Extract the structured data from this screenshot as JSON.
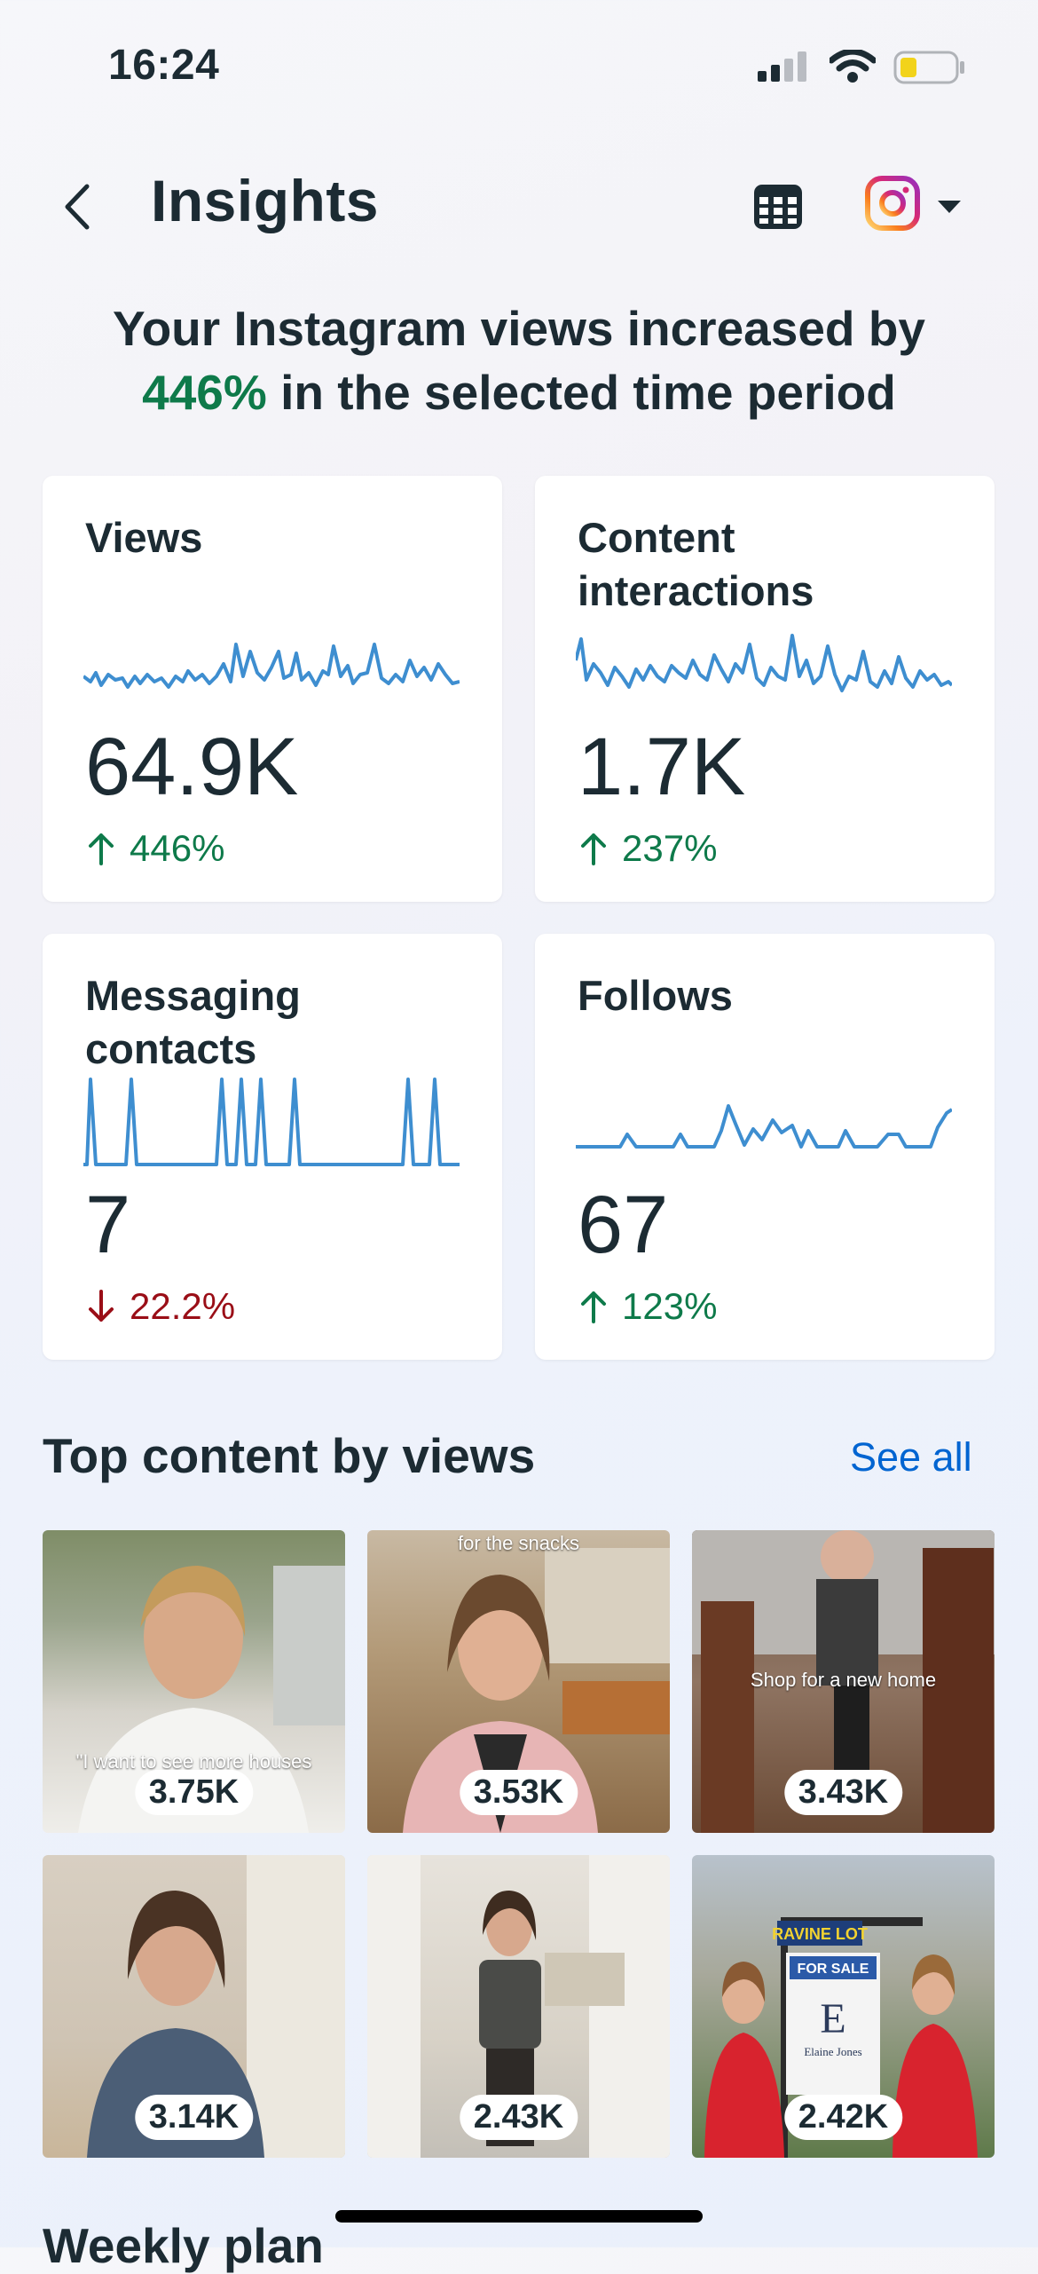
{
  "status_bar": {
    "time": "16:24"
  },
  "header": {
    "title": "Insights"
  },
  "headline": {
    "prefix": "Your Instagram views increased by",
    "percent": "446%",
    "suffix": "in the selected time period"
  },
  "cards": [
    {
      "title": "Views",
      "value": "64.9K",
      "change": "446%",
      "direction": "up"
    },
    {
      "title": "Content interactions",
      "value": "1.7K",
      "change": "237%",
      "direction": "up"
    },
    {
      "title": "Messaging contacts",
      "value": "7",
      "change": "22.2%",
      "direction": "down"
    },
    {
      "title": "Follows",
      "value": "67",
      "change": "123%",
      "direction": "up"
    }
  ],
  "top_content": {
    "title": "Top content by views",
    "see_all": "See all",
    "items": [
      {
        "views": "3.75K",
        "caption": "\"I want to see more houses"
      },
      {
        "views": "3.53K",
        "caption": "for the snacks"
      },
      {
        "views": "3.43K",
        "caption": "Shop for a new home"
      },
      {
        "views": "3.14K",
        "caption": ""
      },
      {
        "views": "2.43K",
        "caption": ""
      },
      {
        "views": "2.42K",
        "caption": "RAVINE LOT · FOR SALE · Elaine Jones"
      }
    ]
  },
  "next_section": {
    "title": "Weekly plan"
  },
  "colors": {
    "positive": "#0e7a4a",
    "negative": "#9a0e17",
    "link": "#0064d1",
    "sparkline": "#3e8ed0"
  }
}
